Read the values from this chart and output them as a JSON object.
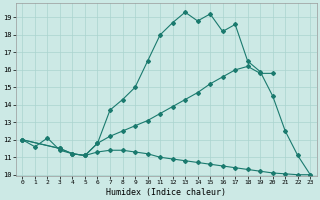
{
  "background_color": "#cce9e5",
  "grid_color": "#aad4cf",
  "line_color": "#1a7a6e",
  "xlabel": "Humidex (Indice chaleur)",
  "ylim": [
    10,
    19.5
  ],
  "xlim": [
    -0.5,
    23.5
  ],
  "yticks": [
    10,
    11,
    12,
    13,
    14,
    15,
    16,
    17,
    18,
    19
  ],
  "xticks": [
    0,
    1,
    2,
    3,
    4,
    5,
    6,
    7,
    8,
    9,
    10,
    11,
    12,
    13,
    14,
    15,
    16,
    17,
    18,
    19,
    20,
    21,
    22,
    23
  ],
  "line1_x": [
    0,
    1,
    2,
    3,
    4,
    5,
    6,
    7,
    8,
    9,
    10,
    11,
    12,
    13,
    14,
    15,
    16,
    17,
    18,
    19,
    20,
    21,
    22,
    23
  ],
  "line1_y": [
    12.0,
    11.6,
    12.1,
    11.4,
    11.2,
    11.1,
    11.8,
    13.7,
    14.3,
    15.0,
    16.5,
    18.0,
    18.7,
    19.3,
    18.8,
    19.2,
    18.2,
    18.6,
    16.5,
    15.9,
    14.5,
    12.5,
    11.1,
    10.0
  ],
  "line2_x": [
    0,
    3,
    4,
    5,
    6,
    7,
    8,
    9,
    10,
    11,
    12,
    13,
    14,
    15,
    16,
    17,
    18,
    19,
    20
  ],
  "line2_y": [
    12.0,
    11.5,
    11.2,
    11.1,
    11.8,
    12.2,
    12.5,
    12.8,
    13.1,
    13.5,
    13.9,
    14.3,
    14.7,
    15.2,
    15.6,
    16.0,
    16.2,
    15.8,
    15.8
  ],
  "line3_x": [
    0,
    3,
    4,
    5,
    6,
    7,
    8,
    9,
    10,
    11,
    12,
    13,
    14,
    15,
    16,
    17,
    18,
    19,
    20,
    21,
    22,
    23
  ],
  "line3_y": [
    12.0,
    11.5,
    11.2,
    11.1,
    11.3,
    11.4,
    11.4,
    11.3,
    11.2,
    11.0,
    10.9,
    10.8,
    10.7,
    10.6,
    10.5,
    10.4,
    10.3,
    10.2,
    10.1,
    10.05,
    10.0,
    10.0
  ]
}
